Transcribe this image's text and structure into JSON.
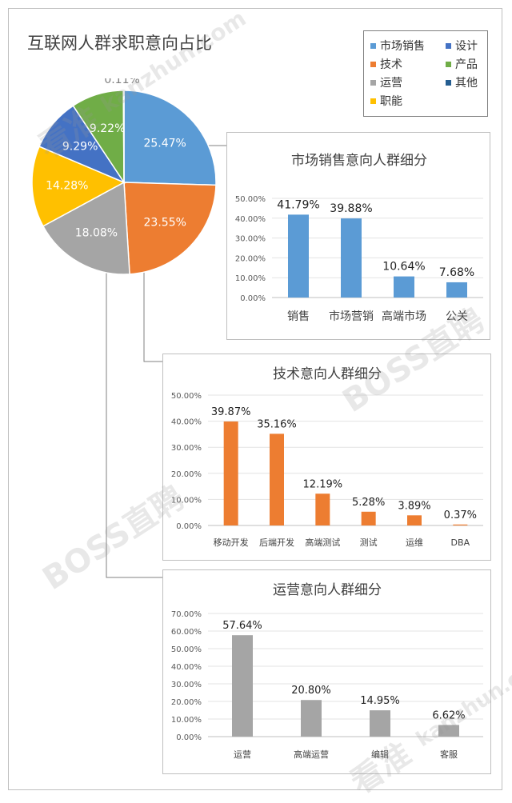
{
  "page": {
    "title": "互联网人群求职意向占比",
    "watermarks": [
      "kanzhun.com",
      "看准",
      "BOSS直聘"
    ]
  },
  "chart_data": [
    {
      "type": "pie",
      "title": "互联网人群求职意向占比",
      "legend_position": "top-right",
      "categories": [
        "市场销售",
        "技术",
        "运营",
        "职能",
        "设计",
        "产品",
        "其他"
      ],
      "values": [
        25.47,
        23.55,
        18.08,
        14.28,
        9.29,
        9.22,
        0.11
      ],
      "labels": [
        "25.47%",
        "23.55%",
        "18.08%",
        "14.28%",
        "9.29%",
        "9.22%",
        "0.11%"
      ],
      "colors": [
        "#5b9bd5",
        "#ed7d31",
        "#a5a5a5",
        "#ffc000",
        "#4472c4",
        "#70ad47",
        "#255e91"
      ]
    },
    {
      "type": "bar",
      "title": "市场销售意向人群细分",
      "categories": [
        "销售",
        "市场营销",
        "高端市场",
        "公关"
      ],
      "values": [
        41.79,
        39.88,
        10.64,
        7.68
      ],
      "labels": [
        "41.79%",
        "39.88%",
        "10.64%",
        "7.68%"
      ],
      "ylim": [
        0,
        50
      ],
      "yticks": [
        "0.00%",
        "10.00%",
        "20.00%",
        "30.00%",
        "40.00%",
        "50.00%"
      ],
      "grid": true,
      "color": "#5b9bd5"
    },
    {
      "type": "bar",
      "title": "技术意向人群细分",
      "categories": [
        "移动开发",
        "后端开发",
        "高端测试",
        "测试",
        "运维",
        "DBA"
      ],
      "values": [
        39.87,
        35.16,
        12.19,
        5.28,
        3.89,
        0.37
      ],
      "labels": [
        "39.87%",
        "35.16%",
        "12.19%",
        "5.28%",
        "3.89%",
        "0.37%"
      ],
      "ylim": [
        0,
        50
      ],
      "yticks": [
        "0.00%",
        "10.00%",
        "20.00%",
        "30.00%",
        "40.00%",
        "50.00%"
      ],
      "grid": true,
      "color": "#ed7d31"
    },
    {
      "type": "bar",
      "title": "运营意向人群细分",
      "categories": [
        "运营",
        "高端运营",
        "编辑",
        "客服"
      ],
      "values": [
        57.64,
        20.8,
        14.95,
        6.62
      ],
      "labels": [
        "57.64%",
        "20.80%",
        "14.95%",
        "6.62%"
      ],
      "ylim": [
        0,
        70
      ],
      "yticks": [
        "0.00%",
        "10.00%",
        "20.00%",
        "30.00%",
        "40.00%",
        "50.00%",
        "60.00%",
        "70.00%"
      ],
      "grid": true,
      "color": "#a5a5a5"
    }
  ]
}
